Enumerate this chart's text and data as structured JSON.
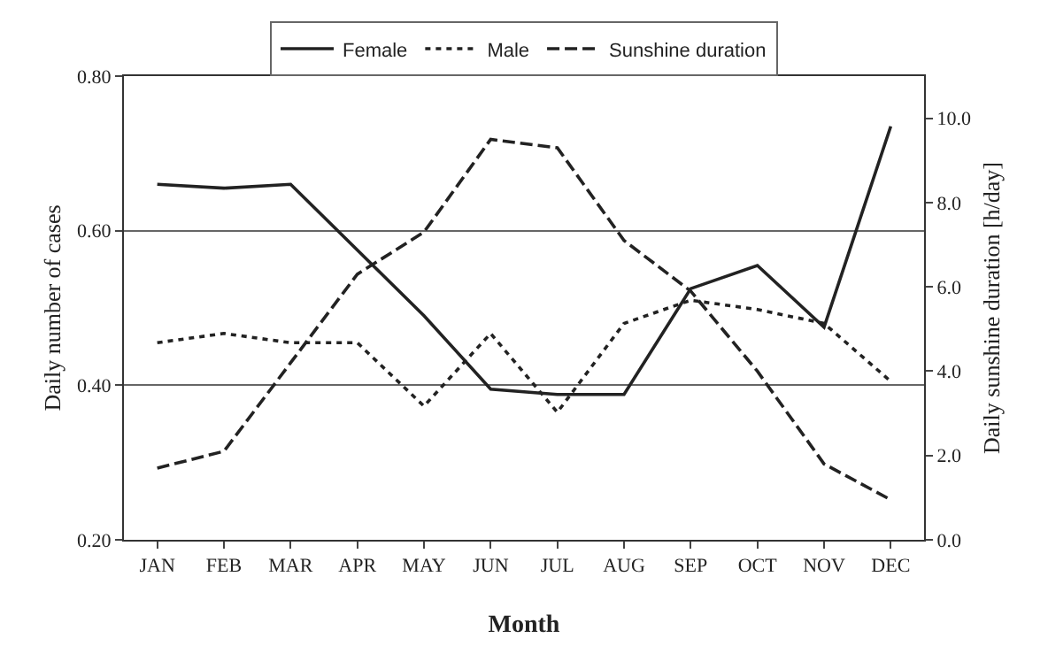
{
  "chart_data": {
    "type": "line",
    "xlabel": "Month",
    "ylabel": "Daily number of cases",
    "y2label": "Daily sunshine duration [h/day]",
    "categories": [
      "JAN",
      "FEB",
      "MAR",
      "APR",
      "MAY",
      "JUN",
      "JUL",
      "AUG",
      "SEP",
      "OCT",
      "NOV",
      "DEC"
    ],
    "series": [
      {
        "name": "Female",
        "color": "#222222",
        "line_style": "solid",
        "values": [
          0.66,
          0.655,
          0.66,
          0.575,
          0.49,
          0.395,
          0.388,
          0.388,
          0.525,
          0.555,
          0.475,
          0.735
        ]
      },
      {
        "name": "Male",
        "color": "#222222",
        "line_style": "dotted",
        "values": [
          0.455,
          0.467,
          0.455,
          0.455,
          0.373,
          0.467,
          0.365,
          0.48,
          0.51,
          0.498,
          0.48,
          0.405
        ]
      },
      {
        "name": "Sunshine duration",
        "color": "#222222",
        "line_style": "dashed",
        "axis": "y2",
        "values": [
          1.7,
          2.1,
          4.2,
          6.3,
          7.3,
          9.5,
          9.3,
          7.1,
          5.9,
          4.0,
          1.8,
          0.95
        ]
      }
    ],
    "ylim": [
      0.2,
      0.8
    ],
    "yticks": [
      {
        "value": 0.2,
        "label": "0.20"
      },
      {
        "value": 0.4,
        "label": "0.40"
      },
      {
        "value": 0.6,
        "label": "0.60"
      },
      {
        "value": 0.8,
        "label": "0.80"
      }
    ],
    "y2lim": [
      0,
      11
    ],
    "y2ticks": [
      {
        "value": 0,
        "label": "0.0"
      },
      {
        "value": 2,
        "label": "2.0"
      },
      {
        "value": 4,
        "label": "4.0"
      },
      {
        "value": 6,
        "label": "6.0"
      },
      {
        "value": 8,
        "label": "8.0"
      },
      {
        "value": 10,
        "label": "10.0"
      }
    ],
    "grid": "y",
    "legend": "top",
    "marker": "none"
  }
}
